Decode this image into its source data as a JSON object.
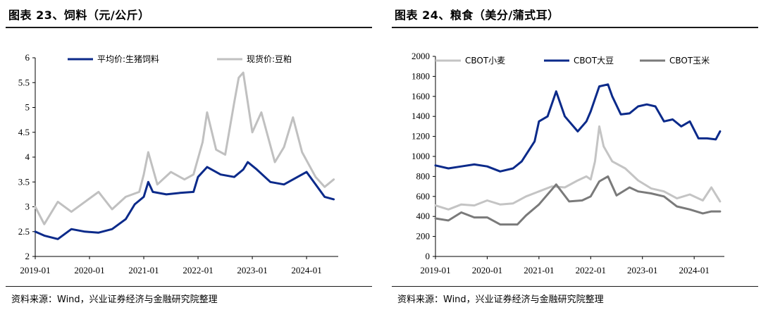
{
  "left": {
    "title": "图表 23、饲料（元/公斤）",
    "source": "资料来源：Wind，兴业证券经济与金融研究院整理"
  },
  "right": {
    "title": "图表 24、粮食（美分/蒲式耳）",
    "source": "资料来源：Wind，兴业证券经济与金融研究院整理"
  },
  "chart_data": [
    {
      "type": "line",
      "x_ticks": [
        "2019-01",
        "2020-01",
        "2021-01",
        "2022-01",
        "2023-01",
        "2024-01"
      ],
      "ylim": [
        2,
        6
      ],
      "y_ticks": [
        "2",
        "2.5",
        "3",
        "3.5",
        "4",
        "4.5",
        "5",
        "5.5",
        "6"
      ],
      "legend_placement": "top",
      "series": [
        {
          "name": "平均价:生猪饲料",
          "color": "#0b2a8a",
          "x": [
            "2019-01",
            "2019-03",
            "2019-06",
            "2019-09",
            "2019-12",
            "2020-03",
            "2020-06",
            "2020-09",
            "2020-11",
            "2021-01",
            "2021-02",
            "2021-03",
            "2021-06",
            "2021-09",
            "2021-12",
            "2022-01",
            "2022-03",
            "2022-06",
            "2022-09",
            "2022-11",
            "2022-12",
            "2023-02",
            "2023-05",
            "2023-08",
            "2023-11",
            "2024-01",
            "2024-03",
            "2024-05",
            "2024-07"
          ],
          "y": [
            2.5,
            2.42,
            2.35,
            2.55,
            2.5,
            2.48,
            2.55,
            2.75,
            3.05,
            3.2,
            3.5,
            3.3,
            3.25,
            3.28,
            3.3,
            3.6,
            3.8,
            3.65,
            3.6,
            3.75,
            3.9,
            3.75,
            3.5,
            3.45,
            3.6,
            3.7,
            3.45,
            3.2,
            3.15
          ]
        },
        {
          "name": "现货价:豆粕",
          "color": "#c0c0c0",
          "x": [
            "2019-01",
            "2019-03",
            "2019-06",
            "2019-09",
            "2019-12",
            "2020-03",
            "2020-06",
            "2020-09",
            "2020-12",
            "2021-01",
            "2021-02",
            "2021-04",
            "2021-07",
            "2021-10",
            "2021-12",
            "2022-02",
            "2022-03",
            "2022-05",
            "2022-07",
            "2022-09",
            "2022-10",
            "2022-11",
            "2023-01",
            "2023-03",
            "2023-06",
            "2023-08",
            "2023-10",
            "2023-12",
            "2024-03",
            "2024-05",
            "2024-07"
          ],
          "y": [
            3.0,
            2.65,
            3.1,
            2.9,
            3.1,
            3.3,
            2.95,
            3.2,
            3.3,
            3.65,
            4.1,
            3.45,
            3.7,
            3.55,
            3.65,
            4.3,
            4.9,
            4.15,
            4.05,
            5.1,
            5.6,
            5.7,
            4.5,
            4.9,
            3.9,
            4.2,
            4.8,
            4.1,
            3.6,
            3.4,
            3.55
          ]
        }
      ]
    },
    {
      "type": "line",
      "x_ticks": [
        "2019-01",
        "2020-01",
        "2021-01",
        "2022-01",
        "2023-01",
        "2024-01"
      ],
      "ylim": [
        0,
        2000
      ],
      "y_ticks": [
        "0",
        "200",
        "400",
        "600",
        "800",
        "1000",
        "1200",
        "1400",
        "1600",
        "1800",
        "2000"
      ],
      "legend_placement": "top",
      "series": [
        {
          "name": "CBOT小麦",
          "color": "#c4c4c4",
          "x": [
            "2019-01",
            "2019-04",
            "2019-07",
            "2019-10",
            "2020-01",
            "2020-04",
            "2020-07",
            "2020-10",
            "2021-01",
            "2021-04",
            "2021-07",
            "2021-10",
            "2021-12",
            "2022-01",
            "2022-02",
            "2022-03",
            "2022-04",
            "2022-06",
            "2022-09",
            "2022-12",
            "2023-03",
            "2023-06",
            "2023-09",
            "2023-12",
            "2024-03",
            "2024-05",
            "2024-07"
          ],
          "y": [
            510,
            470,
            520,
            510,
            560,
            520,
            530,
            600,
            650,
            700,
            690,
            760,
            800,
            770,
            950,
            1300,
            1100,
            950,
            880,
            760,
            680,
            650,
            580,
            620,
            560,
            690,
            550
          ]
        },
        {
          "name": "CBOT大豆",
          "color": "#0b2a8a",
          "x": [
            "2019-01",
            "2019-04",
            "2019-07",
            "2019-10",
            "2020-01",
            "2020-04",
            "2020-07",
            "2020-09",
            "2020-12",
            "2021-01",
            "2021-03",
            "2021-05",
            "2021-07",
            "2021-10",
            "2021-12",
            "2022-01",
            "2022-03",
            "2022-05",
            "2022-06",
            "2022-08",
            "2022-10",
            "2022-12",
            "2023-02",
            "2023-04",
            "2023-06",
            "2023-08",
            "2023-10",
            "2023-12",
            "2024-02",
            "2024-04",
            "2024-06",
            "2024-07"
          ],
          "y": [
            910,
            880,
            900,
            920,
            900,
            850,
            880,
            950,
            1150,
            1350,
            1400,
            1650,
            1400,
            1250,
            1350,
            1450,
            1700,
            1720,
            1600,
            1420,
            1430,
            1500,
            1520,
            1500,
            1350,
            1370,
            1300,
            1350,
            1180,
            1180,
            1170,
            1250
          ]
        },
        {
          "name": "CBOT玉米",
          "color": "#7a7a7a",
          "x": [
            "2019-01",
            "2019-04",
            "2019-07",
            "2019-10",
            "2020-01",
            "2020-04",
            "2020-08",
            "2020-10",
            "2021-01",
            "2021-05",
            "2021-08",
            "2021-11",
            "2022-01",
            "2022-03",
            "2022-05",
            "2022-07",
            "2022-10",
            "2022-12",
            "2023-03",
            "2023-06",
            "2023-09",
            "2023-12",
            "2024-03",
            "2024-05",
            "2024-07"
          ],
          "y": [
            380,
            360,
            440,
            390,
            390,
            320,
            320,
            410,
            520,
            720,
            550,
            560,
            600,
            750,
            800,
            610,
            690,
            650,
            630,
            600,
            500,
            470,
            430,
            450,
            450
          ]
        }
      ]
    }
  ]
}
